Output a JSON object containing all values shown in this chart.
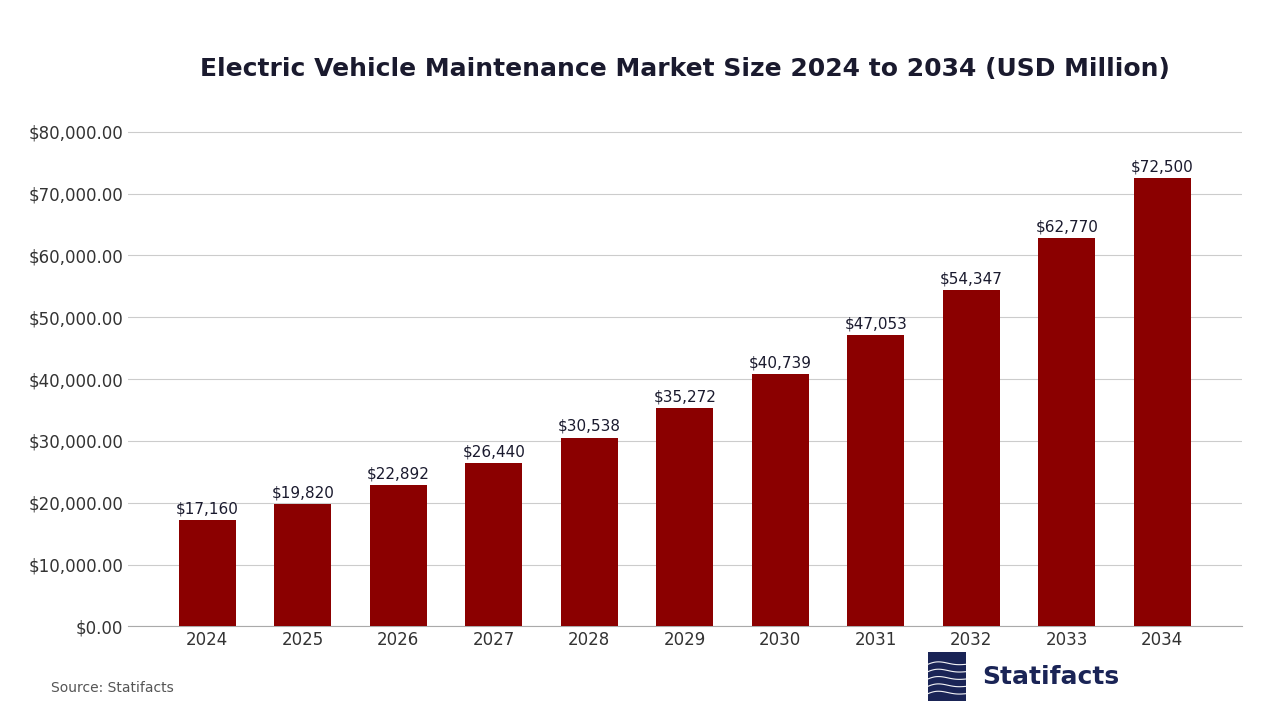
{
  "title": "Electric Vehicle Maintenance Market Size 2024 to 2034 (USD Million)",
  "years": [
    2024,
    2025,
    2026,
    2027,
    2028,
    2029,
    2030,
    2031,
    2032,
    2033,
    2034
  ],
  "values": [
    17160,
    19820,
    22892,
    26440,
    30538,
    35272,
    40739,
    47053,
    54347,
    62770,
    72500
  ],
  "labels": [
    "$17,160",
    "$19,820",
    "$22,892",
    "$26,440",
    "$30,538",
    "$35,272",
    "$40,739",
    "$47,053",
    "$54,347",
    "$62,770",
    "$72,500"
  ],
  "bar_color": "#8B0000",
  "background_color": "#FFFFFF",
  "title_color": "#1a1a2e",
  "label_color": "#1a1a2e",
  "tick_label_color": "#333333",
  "grid_color": "#cccccc",
  "spine_color": "#aaaaaa",
  "logo_color": "#1a2456",
  "source_color": "#555555",
  "ylim": [
    0,
    85000
  ],
  "yticks": [
    0,
    10000,
    20000,
    30000,
    40000,
    50000,
    60000,
    70000,
    80000
  ],
  "ytick_labels": [
    "$0.00",
    "$10,000.00",
    "$20,000.00",
    "$30,000.00",
    "$40,000.00",
    "$50,000.00",
    "$60,000.00",
    "$70,000.00",
    "$80,000.00"
  ],
  "source_text": "Source: Statifacts",
  "statifacts_text": "Statifacts",
  "title_fontsize": 18,
  "axis_tick_fontsize": 12,
  "bar_label_fontsize": 11,
  "source_fontsize": 10,
  "logo_fontsize": 18
}
